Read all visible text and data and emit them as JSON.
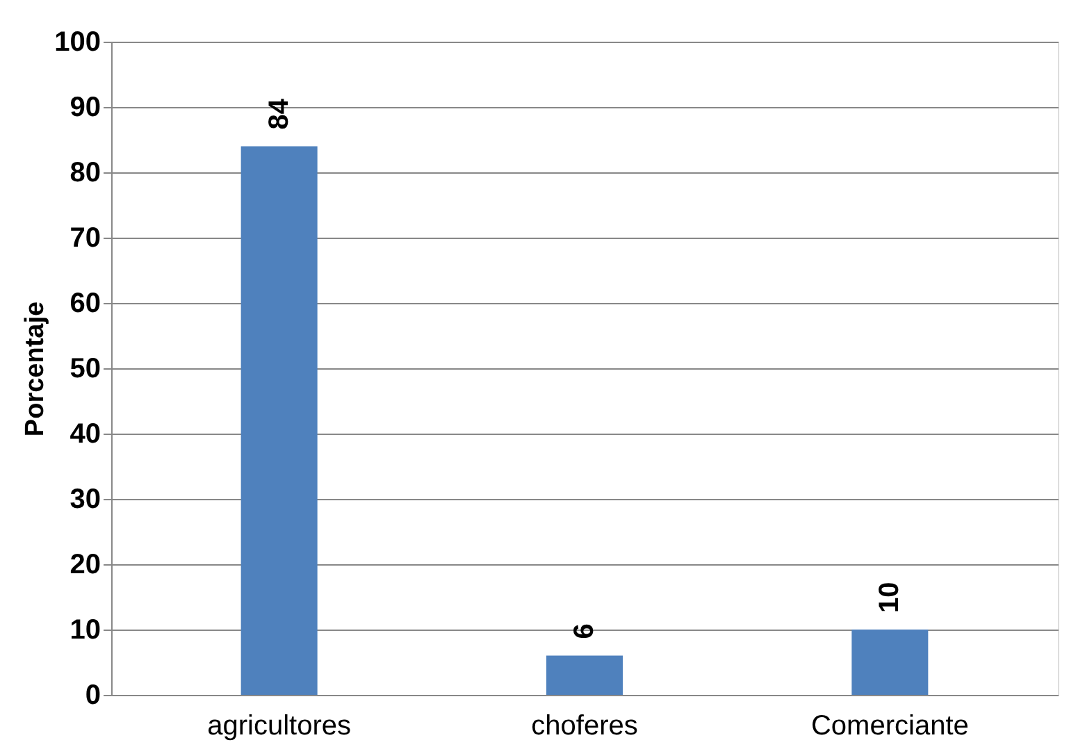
{
  "chart_data": {
    "type": "bar",
    "ylabel": "Porcentaje",
    "categories": [
      "agricultores",
      "choferes",
      "Comerciante"
    ],
    "values": [
      84,
      6,
      10
    ],
    "color": "#4f81bd",
    "ylim": [
      0,
      100
    ],
    "yticks": [
      0,
      10,
      20,
      30,
      40,
      50,
      60,
      70,
      80,
      90,
      100
    ],
    "grid": "y",
    "data_labels": true
  }
}
